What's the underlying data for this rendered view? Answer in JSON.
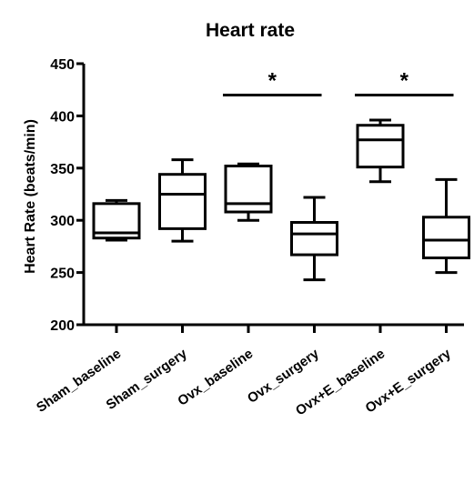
{
  "chart_data": {
    "type": "box",
    "title": "Heart rate",
    "xlabel": "",
    "ylabel": "Heart Rate (beats/min)",
    "ylim": [
      200,
      450
    ],
    "yticks": [
      200,
      250,
      300,
      350,
      400,
      450
    ],
    "grid": false,
    "categories": [
      "Sham_baseline",
      "Sham_surgery",
      "Ovx_baseline",
      "Ovx_surgery",
      "Ovx+E_baseline",
      "Ovx+E_surgery"
    ],
    "boxes": [
      {
        "min": 281,
        "q1": 283,
        "median": 288,
        "q3": 316,
        "max": 319
      },
      {
        "min": 280,
        "q1": 292,
        "median": 325,
        "q3": 344,
        "max": 358
      },
      {
        "min": 300,
        "q1": 308,
        "median": 316,
        "q3": 352,
        "max": 354
      },
      {
        "min": 243,
        "q1": 267,
        "median": 287,
        "q3": 298,
        "max": 322
      },
      {
        "min": 337,
        "q1": 351,
        "median": 377,
        "q3": 391,
        "max": 396
      },
      {
        "min": 250,
        "q1": 264,
        "median": 281,
        "q3": 303,
        "max": 339
      }
    ],
    "annotations": [
      {
        "text": "*",
        "from": 2,
        "to": 3,
        "y": 420
      },
      {
        "text": "*",
        "from": 4,
        "to": 5,
        "y": 420
      }
    ]
  }
}
